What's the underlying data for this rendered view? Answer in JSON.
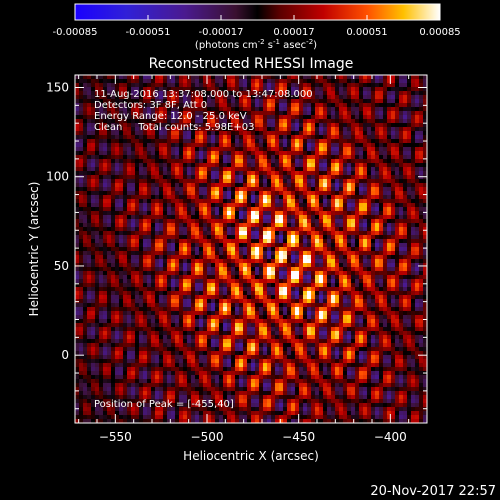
{
  "chart_data": {
    "type": "heatmap",
    "title": "Reconstructed RHESSI Image",
    "xlabel": "Heliocentric X (arcsec)",
    "ylabel": "Heliocentric Y (arcsec)",
    "xlim": [
      -572,
      -380
    ],
    "ylim": [
      -38,
      157
    ],
    "x_ticks": [
      -550,
      -500,
      -450,
      -400
    ],
    "y_ticks": [
      0,
      50,
      100,
      150
    ],
    "colorbar": {
      "ticks": [
        -0.00085,
        -0.00051,
        -0.00017,
        0.00017,
        0.00051,
        0.00085
      ],
      "tick_labels": [
        "-0.00085",
        "-0.00051",
        "-0.00017",
        "0.00017",
        "0.00051",
        "0.00085"
      ],
      "units_label": "(photons cm",
      "units_sup1": "-2",
      "units_mid": " s",
      "units_sup2": "-1",
      "units_mid2": " asec",
      "units_sup3": "-2",
      "units_end": ")",
      "range": [
        -0.00085,
        0.00085
      ]
    },
    "annotations": [
      "11-Aug-2016 13:37:08.000 to 13:47:08.000",
      "Detectors: 3F 8F, Att 0",
      "Energy Range: 12.0 - 25.0 keV",
      "Clean     Total counts: 5.98E+03"
    ],
    "peak_label": "Position of Peak = [-455,40]",
    "peak": [
      -455,
      40
    ],
    "grid": false
  },
  "footer": {
    "timestamp": "20-Nov-2017 22:57"
  },
  "colors": {
    "background": "#000000",
    "text": "#ffffff"
  }
}
